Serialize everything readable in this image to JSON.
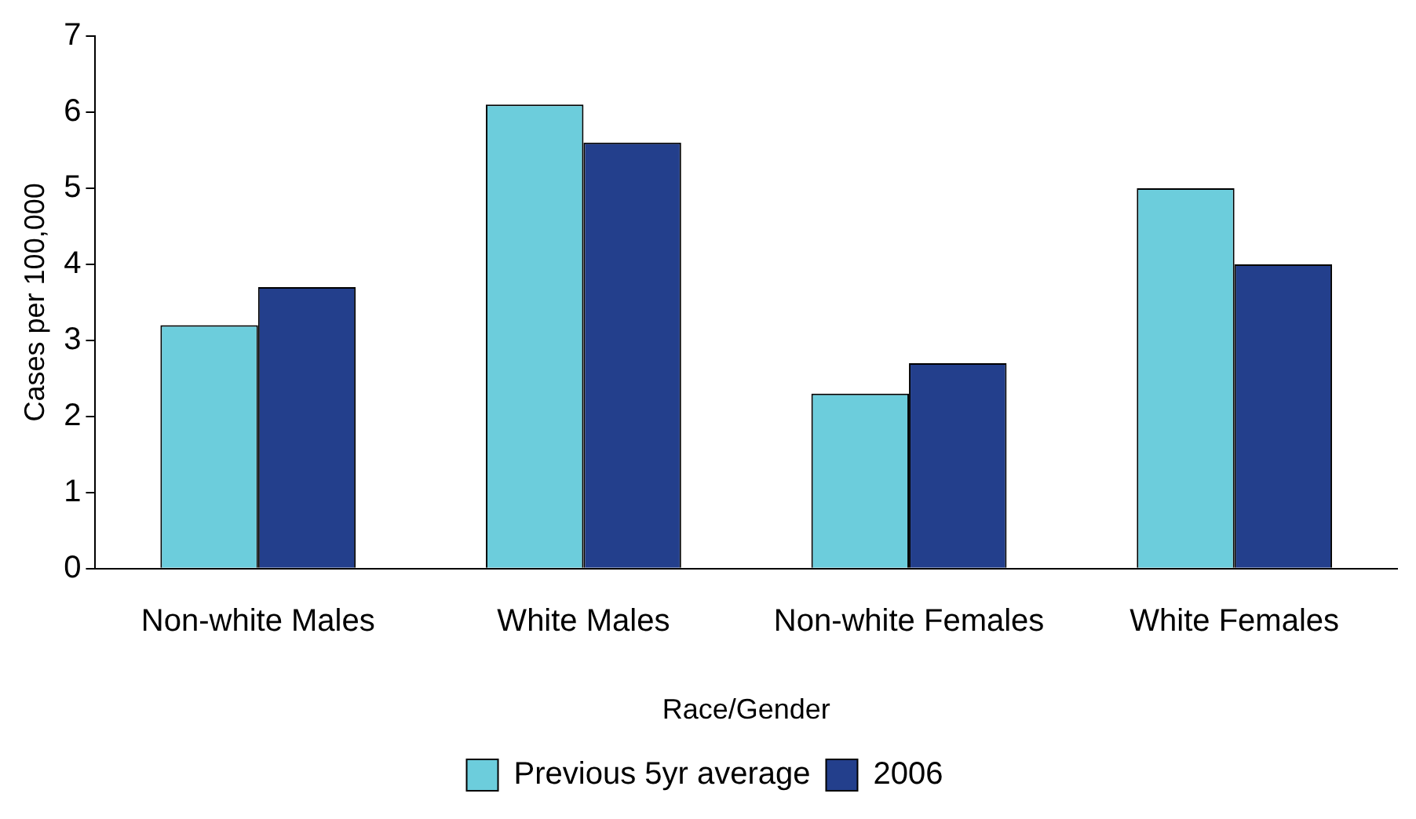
{
  "chart_data": {
    "type": "bar",
    "xlabel": "Race/Gender",
    "ylabel": "Cases per 100,000",
    "categories": [
      "Non-white Males",
      "White Males",
      "Non-white Females",
      "White Females"
    ],
    "series": [
      {
        "name": "Previous 5yr average",
        "color": "#6ccddc",
        "values": [
          3.2,
          6.1,
          2.3,
          5.0
        ]
      },
      {
        "name": "2006",
        "color": "#233f8c",
        "values": [
          3.7,
          5.6,
          2.7,
          4.0
        ]
      }
    ],
    "ylim": [
      0,
      7
    ],
    "yticks": [
      0,
      1,
      2,
      3,
      4,
      5,
      6,
      7
    ],
    "grid": false,
    "legend": "bottom"
  }
}
